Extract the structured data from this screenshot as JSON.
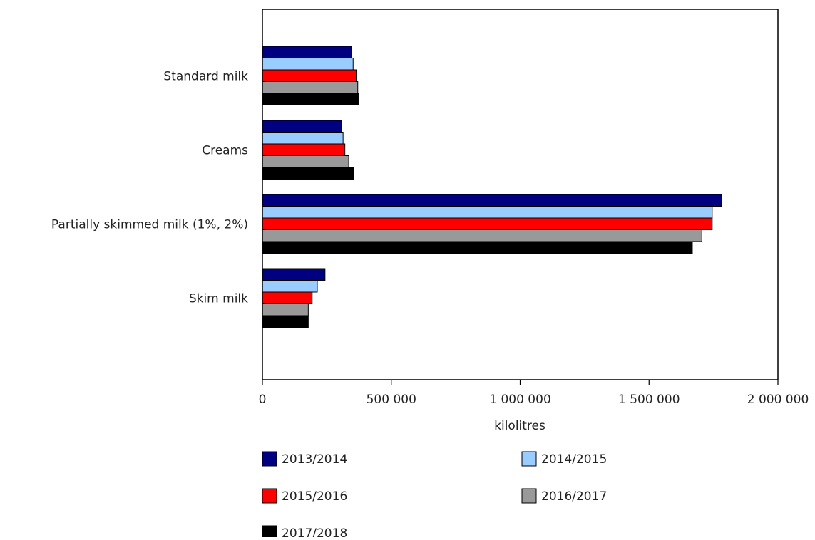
{
  "chart_data": {
    "type": "bar",
    "orientation": "horizontal",
    "title": "",
    "xlabel": "kilolitres",
    "ylabel": "",
    "categories": [
      "Standard milk",
      "Creams",
      "Partially skimmed milk (1%, 2%)",
      "Skim milk"
    ],
    "xlim": [
      0,
      2000000
    ],
    "ticks": [
      0,
      500000,
      1000000,
      1500000,
      2000000
    ],
    "tick_labels": [
      "0",
      "500 000",
      "1 000 000",
      "1 500 000",
      "2 000 000"
    ],
    "series": [
      {
        "name": "2013/2014",
        "color": "#000080",
        "values": [
          345000,
          307000,
          1780000,
          243000
        ]
      },
      {
        "name": "2014/2015",
        "color": "#99ccff",
        "values": [
          352000,
          313000,
          1745000,
          213000
        ]
      },
      {
        "name": "2015/2016",
        "color": "#ff0000",
        "values": [
          364000,
          320000,
          1745000,
          193000
        ]
      },
      {
        "name": "2016/2017",
        "color": "#999999",
        "values": [
          370000,
          335000,
          1705000,
          178000
        ]
      },
      {
        "name": "2017/2018",
        "color": "#000000",
        "values": [
          372000,
          353000,
          1668000,
          178000
        ]
      }
    ],
    "grid": false,
    "legend_position": "bottom"
  }
}
